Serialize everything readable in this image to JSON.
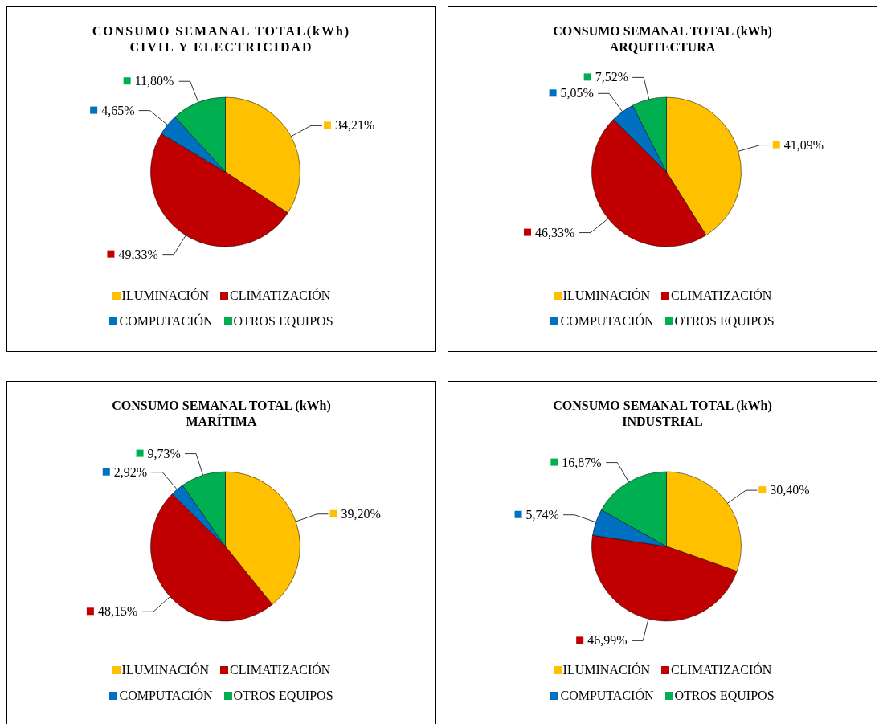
{
  "chart_data": [
    {
      "type": "pie",
      "title": "CONSUMO SEMANAL TOTAL(kWh)",
      "subtitle": "CIVIL Y ELECTRICIDAD",
      "categories": [
        "ILUMINACIÓN",
        "CLIMATIZACIÓN",
        "COMPUTACIÓN",
        "OTROS EQUIPOS"
      ],
      "values": [
        34.21,
        49.33,
        4.65,
        11.8
      ],
      "value_labels": [
        "34,21%",
        "49,33%",
        "4,65%",
        "11,80%"
      ],
      "colors": [
        "#ffc000",
        "#c00000",
        "#0070c0",
        "#00b050"
      ],
      "legend": "bottom"
    },
    {
      "type": "pie",
      "title": "CONSUMO SEMANAL TOTAL (kWh)",
      "subtitle": "ARQUITECTURA",
      "categories": [
        "ILUMINACIÓN",
        "CLIMATIZACIÓN",
        "COMPUTACIÓN",
        "OTROS EQUIPOS"
      ],
      "values": [
        41.09,
        46.33,
        5.05,
        7.52
      ],
      "value_labels": [
        "41,09%",
        "46,33%",
        "5,05%",
        "7,52%"
      ],
      "colors": [
        "#ffc000",
        "#c00000",
        "#0070c0",
        "#00b050"
      ],
      "legend": "bottom"
    },
    {
      "type": "pie",
      "title": "CONSUMO SEMANAL TOTAL (kWh)",
      "subtitle": "MARÍTIMA",
      "categories": [
        "ILUMINACIÓN",
        "CLIMATIZACIÓN",
        "COMPUTACIÓN",
        "OTROS EQUIPOS"
      ],
      "values": [
        39.2,
        48.15,
        2.92,
        9.73
      ],
      "value_labels": [
        "39,20%",
        "48,15%",
        "2,92%",
        "9,73%"
      ],
      "colors": [
        "#ffc000",
        "#c00000",
        "#0070c0",
        "#00b050"
      ],
      "legend": "bottom"
    },
    {
      "type": "pie",
      "title": "CONSUMO SEMANAL TOTAL (kWh)",
      "subtitle": "INDUSTRIAL",
      "categories": [
        "ILUMINACIÓN",
        "CLIMATIZACIÓN",
        "COMPUTACIÓN",
        "OTROS EQUIPOS"
      ],
      "values": [
        30.4,
        46.99,
        5.74,
        16.87
      ],
      "value_labels": [
        "30,40%",
        "46,99%",
        "5,74%",
        "16,87%"
      ],
      "colors": [
        "#ffc000",
        "#c00000",
        "#0070c0",
        "#00b050"
      ],
      "legend": "bottom"
    }
  ]
}
